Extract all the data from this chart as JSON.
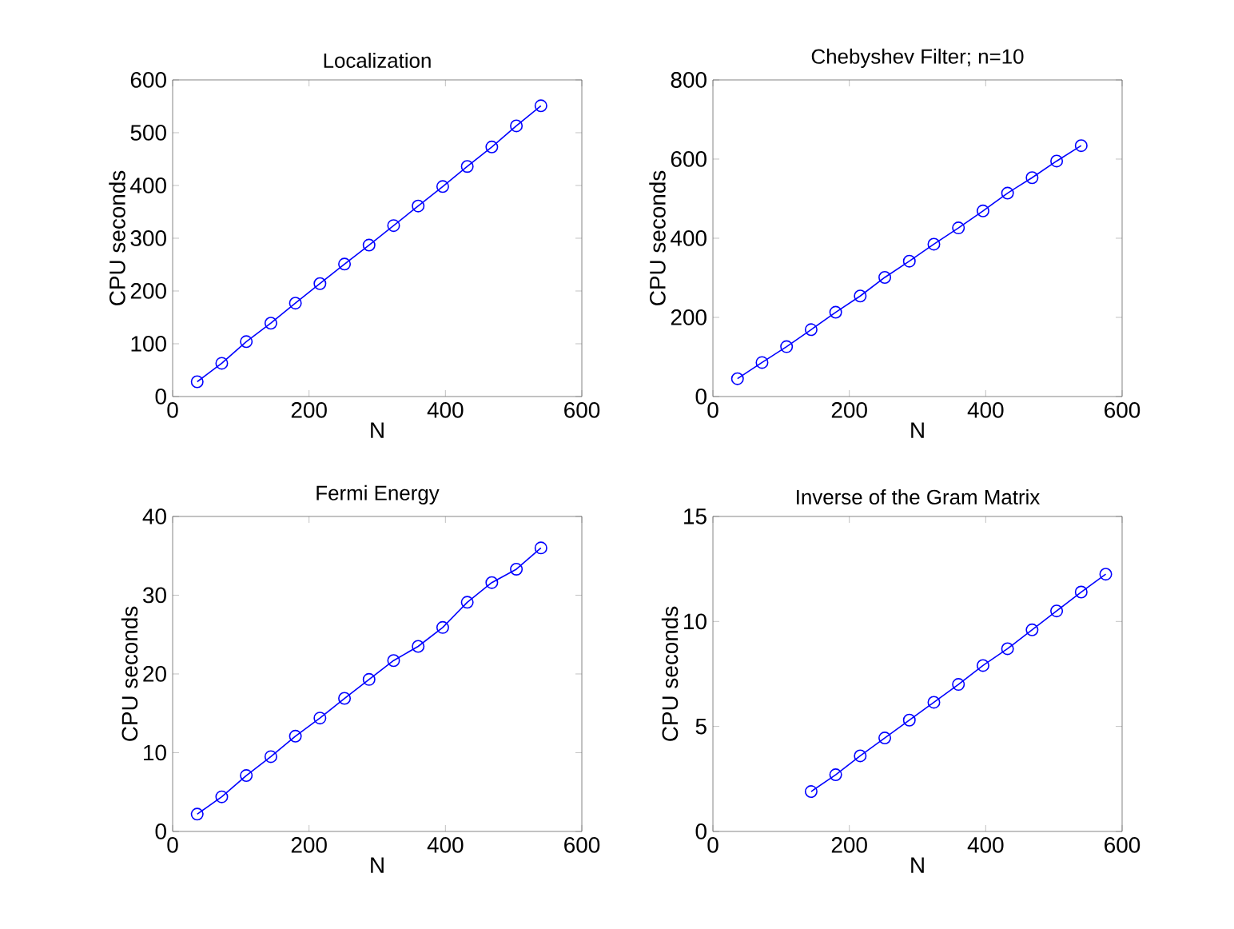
{
  "chart_data": [
    {
      "type": "line",
      "title": "Localization",
      "xlabel": "N",
      "ylabel": "CPU seconds",
      "color": "#0000ff",
      "marker": "circle",
      "line_style": "solid",
      "x": [
        36,
        72,
        108,
        144,
        180,
        216,
        252,
        288,
        324,
        360,
        396,
        432,
        468,
        504,
        540
      ],
      "values": [
        28,
        63,
        104,
        139,
        177,
        214,
        251,
        287,
        324,
        361,
        398,
        436,
        473,
        513,
        551
      ],
      "xlim": [
        0,
        600
      ],
      "ylim": [
        0,
        600
      ],
      "xticks": [
        0,
        200,
        400,
        600
      ],
      "yticks": [
        0,
        100,
        200,
        300,
        400,
        500,
        600
      ]
    },
    {
      "type": "line",
      "title": "Chebyshev Filter; n=10",
      "xlabel": "N",
      "ylabel": "CPU seconds",
      "color": "#0000ff",
      "marker": "circle",
      "line_style": "solid",
      "x": [
        36,
        72,
        108,
        144,
        180,
        216,
        252,
        288,
        324,
        360,
        396,
        432,
        468,
        504,
        540
      ],
      "values": [
        45,
        86,
        126,
        169,
        213,
        254,
        301,
        342,
        385,
        426,
        469,
        514,
        553,
        595,
        634
      ],
      "xlim": [
        0,
        600
      ],
      "ylim": [
        0,
        800
      ],
      "xticks": [
        0,
        200,
        400,
        600
      ],
      "yticks": [
        0,
        200,
        400,
        600,
        800
      ]
    },
    {
      "type": "line",
      "title": "Fermi Energy",
      "xlabel": "N",
      "ylabel": "CPU seconds",
      "color": "#0000ff",
      "marker": "circle",
      "line_style": "solid",
      "x": [
        36,
        72,
        108,
        144,
        180,
        216,
        252,
        288,
        324,
        360,
        396,
        432,
        468,
        504,
        540
      ],
      "values": [
        2.2,
        4.4,
        7.1,
        9.5,
        12.1,
        14.4,
        16.9,
        19.3,
        21.7,
        23.5,
        25.9,
        29.1,
        31.6,
        33.3,
        36.0
      ],
      "xlim": [
        0,
        600
      ],
      "ylim": [
        0,
        40
      ],
      "xticks": [
        0,
        200,
        400,
        600
      ],
      "yticks": [
        0,
        10,
        20,
        30,
        40
      ]
    },
    {
      "type": "line",
      "title": "Inverse of the Gram Matrix",
      "xlabel": "N",
      "ylabel": "CPU seconds",
      "color": "#0000ff",
      "marker": "circle",
      "line_style": "solid",
      "x": [
        144,
        180,
        216,
        252,
        288,
        324,
        360,
        396,
        432,
        468,
        504,
        540,
        576
      ],
      "values": [
        1.9,
        2.7,
        3.6,
        4.45,
        5.3,
        6.15,
        7.0,
        7.9,
        8.7,
        9.6,
        10.5,
        11.4,
        12.25
      ],
      "xlim": [
        0,
        600
      ],
      "ylim": [
        0,
        15
      ],
      "xticks": [
        0,
        200,
        400,
        600
      ],
      "yticks": [
        0,
        5,
        10,
        15
      ]
    }
  ]
}
